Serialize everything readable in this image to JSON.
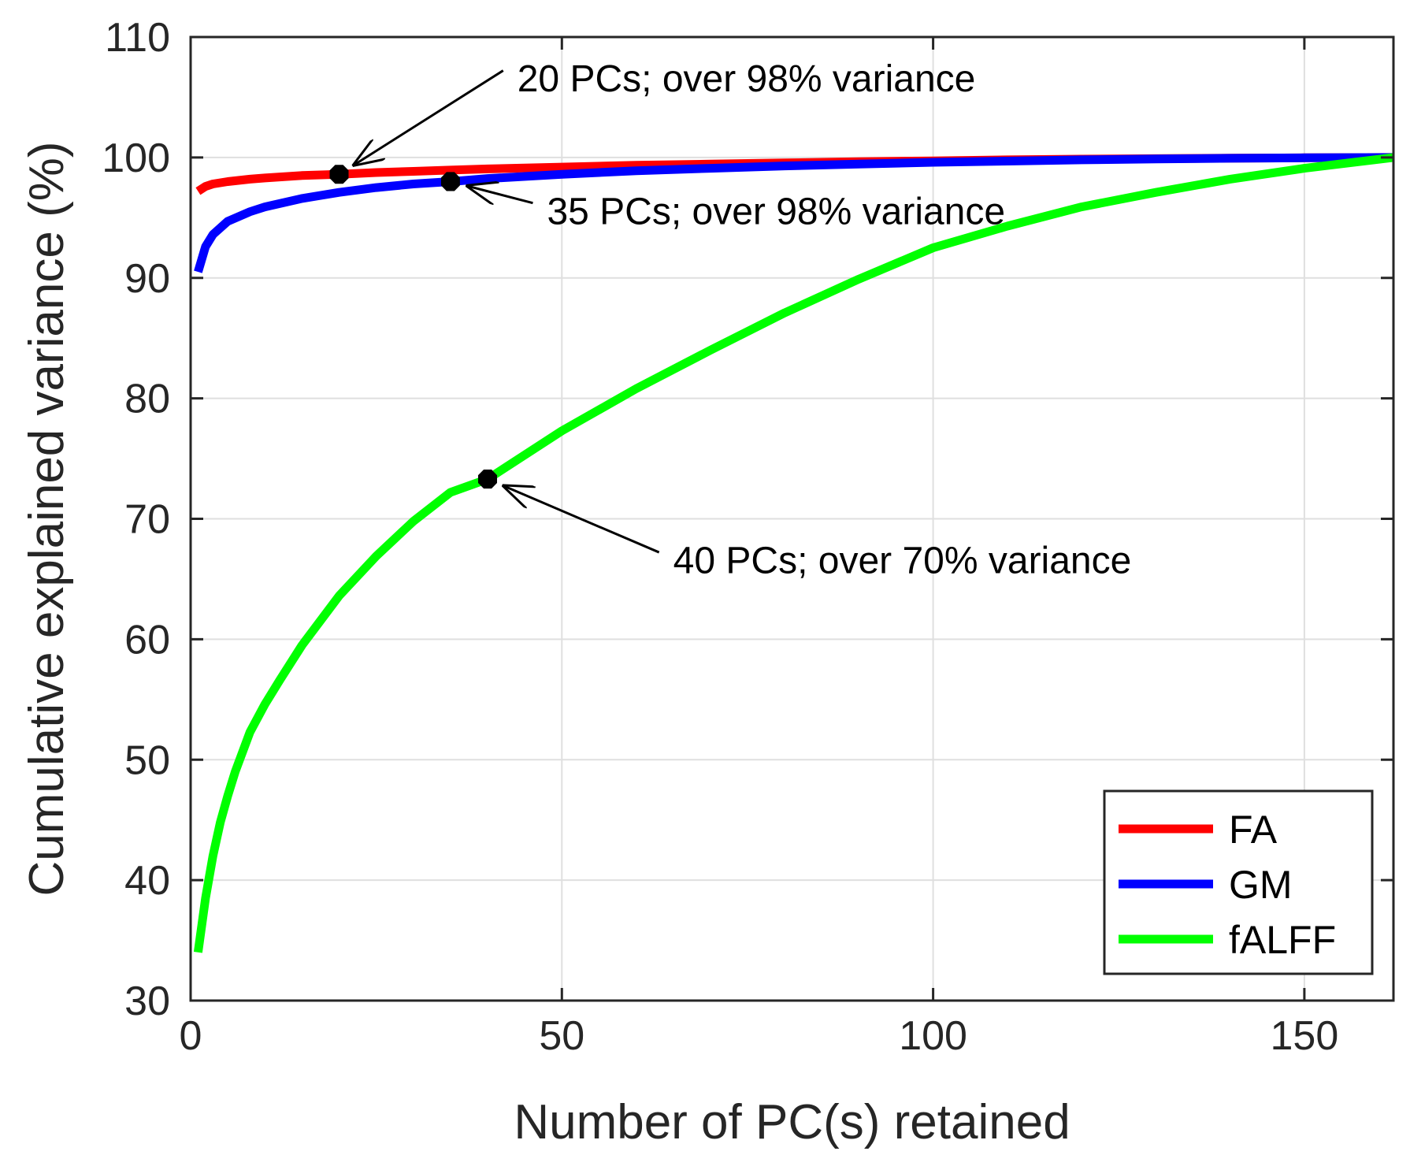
{
  "chart_data": {
    "type": "line",
    "xlabel": "Number of PC(s) retained",
    "ylabel": "Cumulative explained variance (%)",
    "xlim": [
      0,
      162
    ],
    "ylim": [
      30,
      110
    ],
    "xticks": [
      0,
      50,
      100,
      150
    ],
    "yticks": [
      30,
      40,
      50,
      60,
      70,
      80,
      90,
      100,
      110
    ],
    "grid": true,
    "legend_position": "bottom-right",
    "series": [
      {
        "name": "FA",
        "color": "#ff0000",
        "x": [
          1,
          2,
          3,
          5,
          8,
          10,
          15,
          20,
          25,
          30,
          35,
          40,
          50,
          60,
          70,
          80,
          90,
          100,
          110,
          120,
          130,
          140,
          150,
          162
        ],
        "y": [
          97.2,
          97.6,
          97.8,
          98.0,
          98.2,
          98.3,
          98.5,
          98.6,
          98.75,
          98.85,
          98.95,
          99.05,
          99.2,
          99.35,
          99.45,
          99.55,
          99.65,
          99.72,
          99.8,
          99.86,
          99.9,
          99.94,
          99.97,
          100
        ]
      },
      {
        "name": "GM",
        "color": "#0000ff",
        "x": [
          1,
          2,
          3,
          5,
          8,
          10,
          15,
          20,
          25,
          30,
          35,
          40,
          50,
          60,
          70,
          80,
          90,
          100,
          110,
          120,
          130,
          140,
          150,
          162
        ],
        "y": [
          90.5,
          92.6,
          93.6,
          94.7,
          95.5,
          95.9,
          96.6,
          97.1,
          97.5,
          97.8,
          98.0,
          98.25,
          98.6,
          98.9,
          99.1,
          99.3,
          99.45,
          99.6,
          99.7,
          99.8,
          99.88,
          99.93,
          99.97,
          100
        ]
      },
      {
        "name": "fALFF",
        "color": "#00ff00",
        "x": [
          1,
          2,
          3,
          4,
          5,
          6,
          8,
          10,
          12,
          15,
          20,
          25,
          30,
          35,
          40,
          50,
          60,
          70,
          80,
          90,
          100,
          110,
          120,
          130,
          140,
          150,
          162
        ],
        "y": [
          34,
          38.5,
          42,
          44.8,
          47,
          49,
          52.3,
          54.6,
          56.6,
          59.5,
          63.6,
          66.9,
          69.8,
          72.2,
          73.3,
          77.3,
          80.8,
          84,
          87.1,
          89.9,
          92.5,
          94.3,
          95.9,
          97.1,
          98.2,
          99.1,
          100
        ]
      }
    ],
    "markers": [
      {
        "series": "FA",
        "x": 20,
        "y": 98.6
      },
      {
        "series": "GM",
        "x": 35,
        "y": 98.0
      },
      {
        "series": "fALFF",
        "x": 40,
        "y": 73.3
      }
    ],
    "annotations": [
      {
        "text": "20 PCs; over 98% variance",
        "point_x": 20,
        "point_y": 98.6,
        "text_x": 44,
        "text_y": 106.3,
        "anchor": "start"
      },
      {
        "text": "35 PCs; over 98% variance",
        "point_x": 35,
        "point_y": 98.0,
        "text_x": 48,
        "text_y": 95.3,
        "anchor": "start"
      },
      {
        "text": "40 PCs; over 70% variance",
        "point_x": 40,
        "point_y": 73.3,
        "text_x": 65,
        "text_y": 66.3,
        "anchor": "start"
      }
    ]
  }
}
